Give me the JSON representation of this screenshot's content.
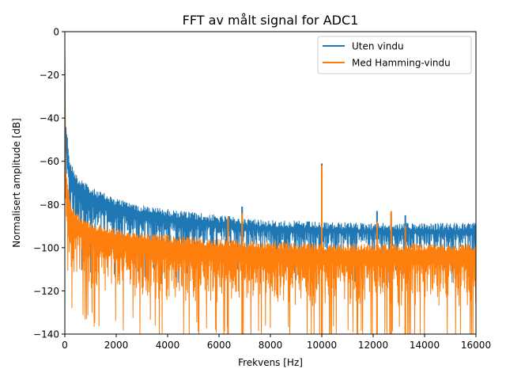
{
  "chart_data": {
    "type": "line",
    "title": "FFT av målt signal for ADC1",
    "xlabel": "Frekvens [Hz]",
    "ylabel": "Normalisert amplitude [dB]",
    "xlim": [
      0,
      16000
    ],
    "ylim": [
      -140,
      0
    ],
    "xticks": [
      0,
      2000,
      4000,
      6000,
      8000,
      10000,
      12000,
      14000,
      16000
    ],
    "xtick_labels": [
      "0",
      "2000",
      "4000",
      "6000",
      "8000",
      "10000",
      "12000",
      "14000",
      "16000"
    ],
    "yticks": [
      0,
      -20,
      -40,
      -60,
      -80,
      -100,
      -120,
      -140
    ],
    "ytick_labels": [
      "0",
      "−20",
      "−40",
      "−60",
      "−80",
      "−100",
      "−120",
      "−140"
    ],
    "grid": false,
    "legend_position": "top-right",
    "series": [
      {
        "name": "Uten vindu",
        "color": "#1f77b4",
        "dc_value": -8,
        "upper_envelope": {
          "x": [
            30,
            200,
            500,
            1000,
            2000,
            3000,
            4000,
            6000,
            8000,
            10000,
            12000,
            14000,
            16000
          ],
          "y": [
            -40,
            -60,
            -67,
            -72,
            -77,
            -80,
            -82,
            -85,
            -87,
            -88,
            -88.5,
            -88.5,
            -88.5
          ]
        },
        "lower_envelope": {
          "x": [
            30,
            200,
            500,
            1000,
            2000,
            3000,
            4000,
            6000,
            8000,
            10000,
            12000,
            14000,
            16000
          ],
          "y": [
            -92,
            -100,
            -104,
            -106,
            -107,
            -107,
            -107,
            -107,
            -107,
            -107,
            -107,
            -107,
            -107
          ]
        },
        "peaks": [
          {
            "x": 6900,
            "y": -81
          },
          {
            "x": 10000,
            "y": -61
          },
          {
            "x": 12150,
            "y": -83
          },
          {
            "x": 12700,
            "y": -84
          },
          {
            "x": 13250,
            "y": -85
          }
        ]
      },
      {
        "name": "Med Hamming-vindu",
        "color": "#ff7f0e",
        "dc_value": -6,
        "upper_envelope": {
          "x": [
            30,
            200,
            500,
            1000,
            2000,
            3000,
            4000,
            6000,
            8000,
            10000,
            12000,
            14000,
            16000
          ],
          "y": [
            -62,
            -78,
            -84,
            -88,
            -91,
            -93,
            -94,
            -96,
            -97,
            -98,
            -98,
            -98,
            -98
          ]
        },
        "lower_envelope": {
          "x": [
            30,
            200,
            500,
            1000,
            2000,
            3000,
            4000,
            6000,
            8000,
            10000,
            12000,
            14000,
            16000
          ],
          "y": [
            -100,
            -118,
            -124,
            -128,
            -131,
            -133,
            -134,
            -135,
            -136,
            -136,
            -136,
            -136,
            -136
          ]
        },
        "peaks": [
          {
            "x": 6350,
            "y": -86
          },
          {
            "x": 6900,
            "y": -84
          },
          {
            "x": 10000,
            "y": -62
          },
          {
            "x": 12150,
            "y": -88
          },
          {
            "x": 12700,
            "y": -83
          },
          {
            "x": 13250,
            "y": -90
          }
        ]
      }
    ]
  }
}
